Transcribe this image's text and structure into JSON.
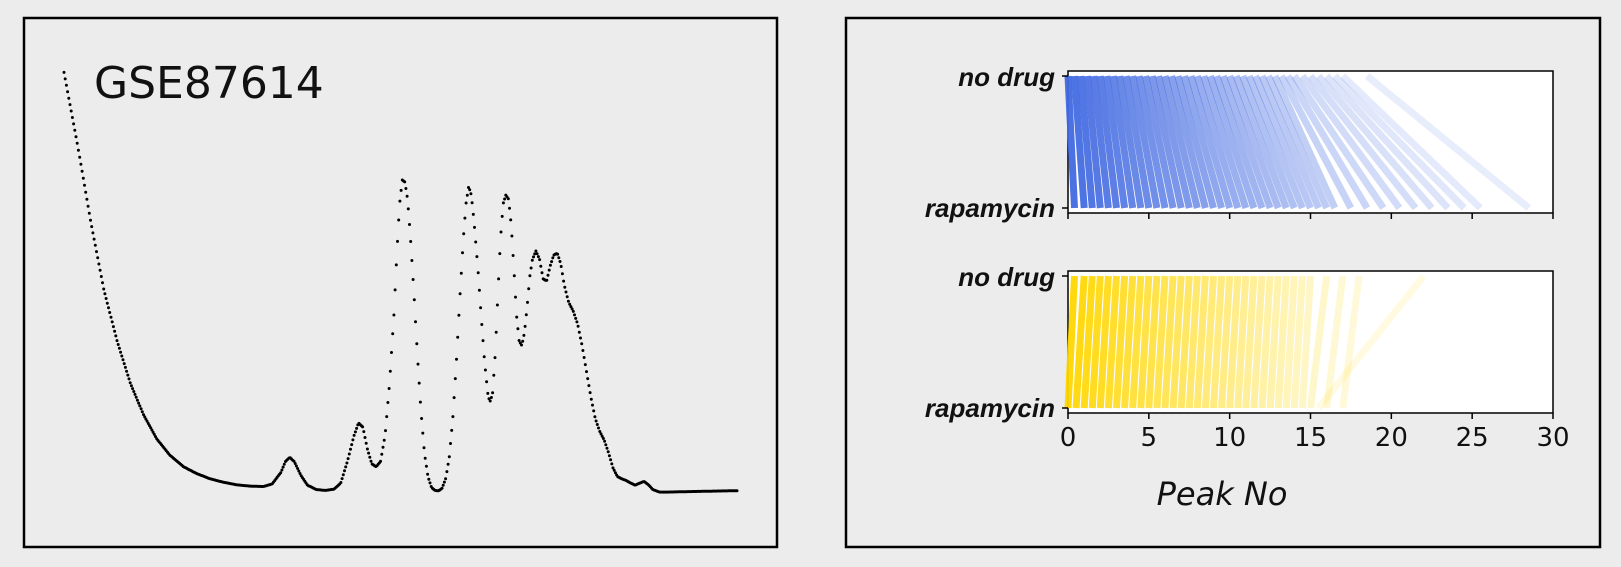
{
  "chart_data": [
    {
      "type": "scatter",
      "title": "GSE87614",
      "xlabel": "",
      "ylabel": "",
      "profile": [
        [
          0.0,
          0.985
        ],
        [
          0.03,
          0.82
        ],
        [
          0.06,
          0.64
        ],
        [
          0.09,
          0.48
        ],
        [
          0.12,
          0.36
        ],
        [
          0.15,
          0.262
        ],
        [
          0.18,
          0.188
        ],
        [
          0.21,
          0.132
        ],
        [
          0.24,
          0.094
        ],
        [
          0.27,
          0.068
        ],
        [
          0.3,
          0.052
        ],
        [
          0.33,
          0.04
        ],
        [
          0.36,
          0.032
        ],
        [
          0.39,
          0.026
        ],
        [
          0.42,
          0.023
        ],
        [
          0.45,
          0.022
        ],
        [
          0.47,
          0.028
        ],
        [
          0.49,
          0.055
        ],
        [
          0.5,
          0.08
        ],
        [
          0.51,
          0.09
        ],
        [
          0.52,
          0.08
        ],
        [
          0.535,
          0.048
        ],
        [
          0.55,
          0.025
        ],
        [
          0.57,
          0.015
        ],
        [
          0.59,
          0.013
        ],
        [
          0.61,
          0.016
        ],
        [
          0.625,
          0.03
        ],
        [
          0.64,
          0.08
        ],
        [
          0.655,
          0.14
        ],
        [
          0.665,
          0.17
        ],
        [
          0.675,
          0.16
        ],
        [
          0.685,
          0.11
        ],
        [
          0.695,
          0.075
        ],
        [
          0.705,
          0.068
        ],
        [
          0.715,
          0.08
        ],
        [
          0.725,
          0.14
        ],
        [
          0.735,
          0.26
        ],
        [
          0.745,
          0.42
        ],
        [
          0.752,
          0.57
        ],
        [
          0.758,
          0.68
        ],
        [
          0.764,
          0.735
        ],
        [
          0.77,
          0.73
        ],
        [
          0.776,
          0.69
        ],
        [
          0.782,
          0.61
        ],
        [
          0.79,
          0.48
        ],
        [
          0.798,
          0.33
        ],
        [
          0.806,
          0.2
        ],
        [
          0.814,
          0.1
        ],
        [
          0.822,
          0.045
        ],
        [
          0.83,
          0.02
        ],
        [
          0.838,
          0.013
        ],
        [
          0.846,
          0.012
        ],
        [
          0.854,
          0.018
        ],
        [
          0.862,
          0.04
        ],
        [
          0.87,
          0.09
        ],
        [
          0.878,
          0.18
        ],
        [
          0.886,
          0.31
        ],
        [
          0.894,
          0.46
        ],
        [
          0.902,
          0.6
        ],
        [
          0.908,
          0.68
        ],
        [
          0.914,
          0.72
        ],
        [
          0.92,
          0.7
        ],
        [
          0.926,
          0.64
        ],
        [
          0.934,
          0.54
        ],
        [
          0.942,
          0.42
        ],
        [
          0.95,
          0.31
        ],
        [
          0.958,
          0.23
        ],
        [
          0.963,
          0.22
        ],
        [
          0.968,
          0.24
        ],
        [
          0.974,
          0.33
        ],
        [
          0.98,
          0.47
        ],
        [
          0.986,
          0.6
        ],
        [
          0.992,
          0.68
        ],
        [
          0.998,
          0.7
        ],
        [
          1.004,
          0.69
        ],
        [
          1.01,
          0.63
        ],
        [
          1.016,
          0.53
        ],
        [
          1.022,
          0.42
        ],
        [
          1.028,
          0.36
        ],
        [
          1.034,
          0.35
        ],
        [
          1.04,
          0.38
        ],
        [
          1.046,
          0.44
        ],
        [
          1.052,
          0.51
        ],
        [
          1.058,
          0.55
        ],
        [
          1.066,
          0.57
        ],
        [
          1.074,
          0.55
        ],
        [
          1.082,
          0.505
        ],
        [
          1.09,
          0.5
        ],
        [
          1.098,
          0.535
        ],
        [
          1.106,
          0.56
        ],
        [
          1.114,
          0.565
        ],
        [
          1.122,
          0.54
        ],
        [
          1.13,
          0.49
        ],
        [
          1.14,
          0.45
        ],
        [
          1.15,
          0.43
        ],
        [
          1.16,
          0.4
        ],
        [
          1.17,
          0.35
        ],
        [
          1.18,
          0.29
        ],
        [
          1.19,
          0.23
        ],
        [
          1.2,
          0.18
        ],
        [
          1.21,
          0.15
        ],
        [
          1.22,
          0.13
        ],
        [
          1.23,
          0.1
        ],
        [
          1.24,
          0.065
        ],
        [
          1.25,
          0.045
        ],
        [
          1.26,
          0.04
        ],
        [
          1.27,
          0.036
        ],
        [
          1.28,
          0.03
        ],
        [
          1.29,
          0.025
        ],
        [
          1.3,
          0.03
        ],
        [
          1.31,
          0.034
        ],
        [
          1.32,
          0.026
        ],
        [
          1.33,
          0.015
        ],
        [
          1.345,
          0.009
        ],
        [
          1.36,
          0.009
        ],
        [
          1.4,
          0.01
        ],
        [
          1.45,
          0.011
        ],
        [
          1.5,
          0.012
        ],
        [
          1.52,
          0.012
        ]
      ]
    },
    {
      "type": "line",
      "ylabels": [
        "no drug",
        "rapamycin"
      ],
      "xlim": [
        0,
        30
      ],
      "xticks": [
        0,
        5,
        10,
        15,
        20,
        25,
        30
      ],
      "xlabel": "Peak No",
      "panels": [
        {
          "color": "#4169e1",
          "top": [
            0,
            0.4,
            0.8,
            1.2,
            1.6,
            2.0,
            2.4,
            2.8,
            3.2,
            3.6,
            4.0,
            4.4,
            4.8,
            5.2,
            5.6,
            6.0,
            6.4,
            6.8,
            7.2,
            7.6,
            8.0,
            8.4,
            8.8,
            9.2,
            9.6,
            10.0,
            10.4,
            10.8,
            11.2,
            11.6,
            12.0,
            12.4,
            12.8,
            13.2,
            13.6,
            14.0,
            14.5,
            15.0,
            15.5,
            16.0,
            16.5,
            17.0,
            18.5
          ],
          "bottom": [
            0.4,
            1.0,
            1.5,
            2.0,
            2.5,
            3.0,
            3.5,
            4.0,
            4.5,
            5.0,
            5.5,
            6.0,
            6.5,
            7.0,
            7.5,
            8.0,
            8.5,
            9.0,
            9.5,
            10.0,
            10.5,
            11.0,
            11.5,
            12.0,
            12.5,
            13.0,
            13.5,
            14.0,
            14.5,
            15.0,
            15.5,
            16.0,
            16.5,
            17.5,
            18.5,
            19.5,
            20.5,
            21.5,
            22.5,
            23.5,
            24.5,
            25.5,
            28.5
          ]
        },
        {
          "color": "#ffd700",
          "top": [
            0.4,
            1.0,
            1.5,
            2.0,
            2.5,
            3.0,
            3.5,
            4.0,
            4.5,
            5.0,
            5.5,
            6.0,
            6.5,
            7.0,
            7.5,
            8.0,
            8.5,
            9.0,
            9.5,
            10.0,
            10.5,
            11.0,
            11.5,
            12.0,
            12.5,
            13.0,
            13.5,
            14.0,
            14.5,
            15.0,
            16.0,
            17.0,
            18.0,
            22.0
          ],
          "bottom": [
            0,
            0.5,
            1.0,
            1.5,
            2.0,
            2.5,
            3.0,
            3.5,
            4.0,
            4.5,
            5.0,
            5.5,
            6.0,
            6.5,
            7.0,
            7.5,
            8.0,
            8.5,
            9.0,
            9.5,
            10.0,
            10.5,
            11.0,
            11.5,
            12.0,
            12.5,
            13.0,
            13.5,
            14.0,
            14.5,
            15.0,
            16.0,
            17.0,
            15.5
          ]
        }
      ]
    }
  ]
}
